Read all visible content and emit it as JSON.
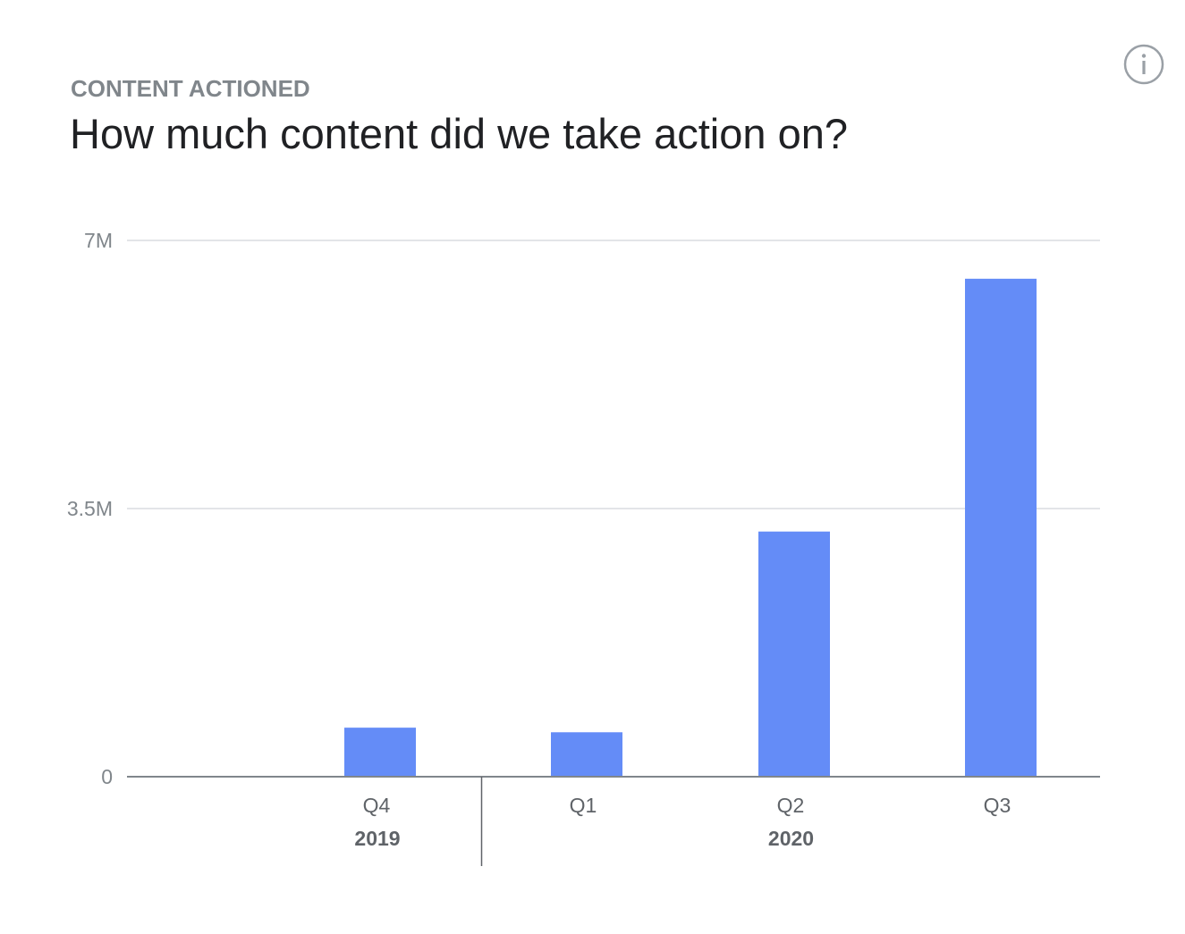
{
  "header": {
    "eyebrow": "CONTENT ACTIONED",
    "title": "How much content did we take action on?",
    "info_icon": "info-icon"
  },
  "chart_data": {
    "type": "bar",
    "categories": [
      "Q4",
      "Q1",
      "Q2",
      "Q3"
    ],
    "groups": [
      {
        "label": "2019",
        "categories": [
          "Q4"
        ]
      },
      {
        "label": "2020",
        "categories": [
          "Q1",
          "Q2",
          "Q3"
        ]
      }
    ],
    "values": [
      640000,
      580000,
      3200000,
      6500000
    ],
    "yticks": [
      {
        "value": 0,
        "label": "0"
      },
      {
        "value": 3500000,
        "label": "3.5M"
      },
      {
        "value": 7000000,
        "label": "7M"
      }
    ],
    "ylim": [
      0,
      7000000
    ],
    "title": "",
    "xlabel": "",
    "ylabel": "",
    "bar_color": "#648cf7",
    "grid": true,
    "legend": "none"
  }
}
